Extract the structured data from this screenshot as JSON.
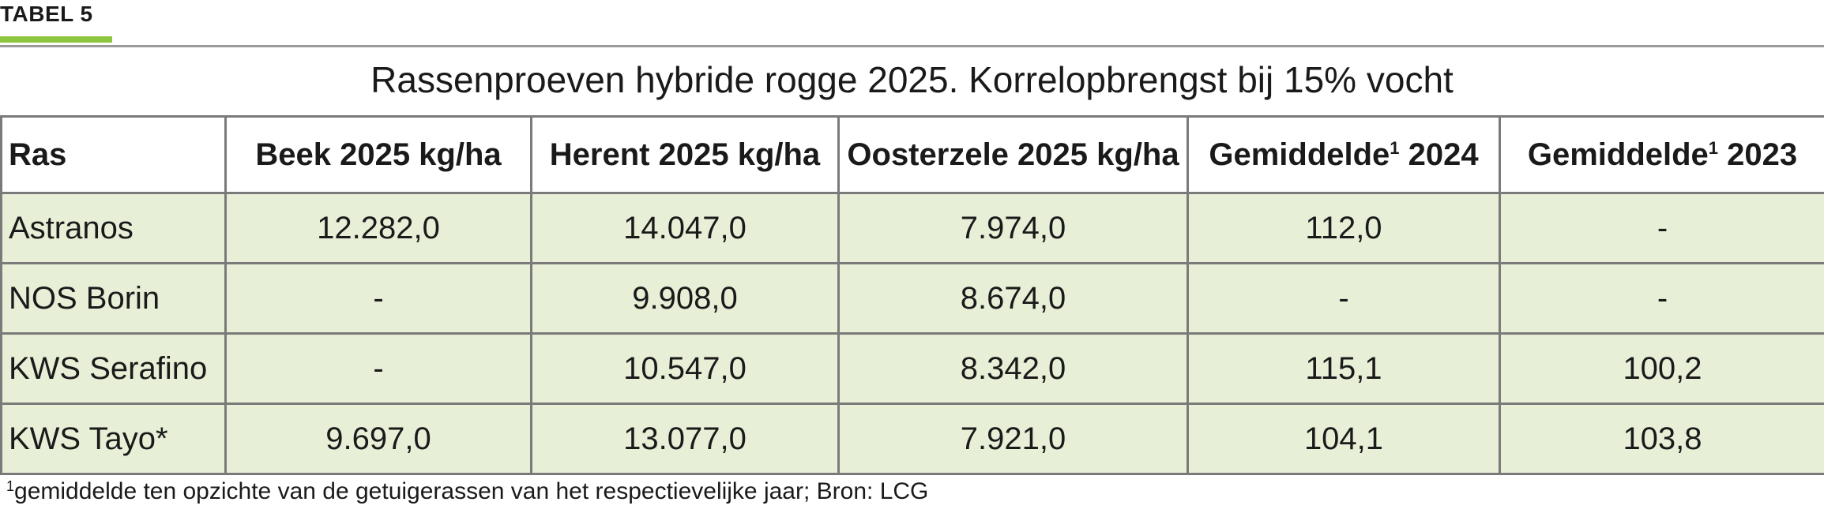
{
  "label": "TABEL 5",
  "title": "Rassenproeven hybride rogge 2025.  Korrelopbrengst bij 15% vocht",
  "table": {
    "headers": [
      "Ras",
      "Beek 2025 kg/ha",
      "Herent 2025 kg/ha",
      "Oosterzele 2025 kg/ha",
      "Gemiddelde",
      "Gemiddelde"
    ],
    "header_sup": "1",
    "header_years": {
      "h4": "2024",
      "h5": "2023"
    },
    "rows": [
      [
        "Astranos",
        "12.282,0",
        "14.047,0",
        "7.974,0",
        "112,0",
        "-"
      ],
      [
        "NOS Borin",
        "-",
        "9.908,0",
        "8.674,0",
        "-",
        "-"
      ],
      [
        "KWS Serafino",
        "-",
        "10.547,0",
        "8.342,0",
        "115,1",
        "100,2"
      ],
      [
        "KWS Tayo*",
        "9.697,0",
        "13.077,0",
        "7.921,0",
        "104,1",
        "103,8"
      ]
    ]
  },
  "footnote": {
    "marker": "1",
    "text": "gemiddelde ten opzichte van de getuigerassen van het respectievelijke jaar; Bron: LCG"
  },
  "colors": {
    "accent": "#8cc63f",
    "row_bg": "#e8efd7",
    "border": "#7a7a7a"
  }
}
